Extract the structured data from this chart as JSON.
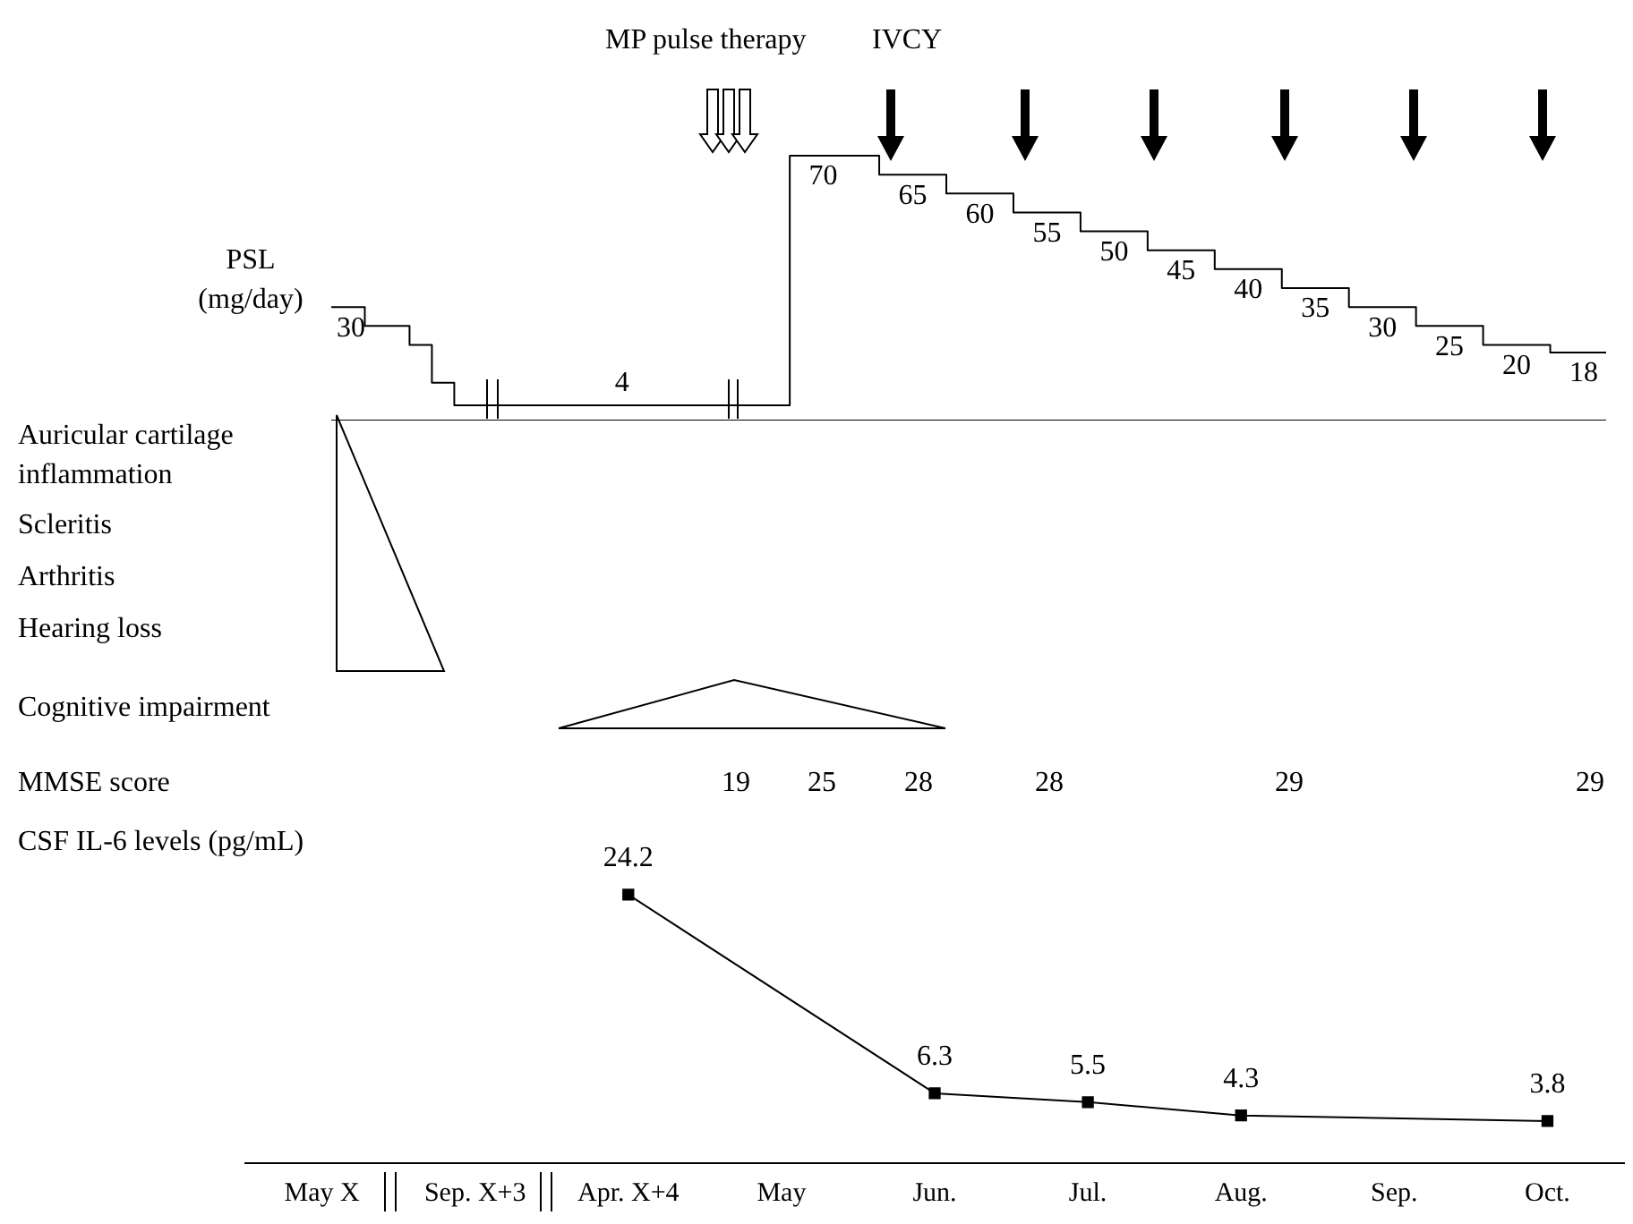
{
  "chart_data": [
    {
      "type": "step",
      "ylabel": "PSL (mg/day)",
      "color": "#000000",
      "grid": false,
      "legend": false,
      "tick_labels": false,
      "categories": [
        null,
        null,
        null,
        null,
        null,
        null,
        null,
        null,
        null,
        null,
        null,
        null,
        null,
        null,
        null,
        null,
        null,
        null,
        null,
        null,
        null,
        null,
        null,
        null,
        null,
        null,
        null,
        null,
        null,
        null,
        null,
        null,
        null,
        null,
        null,
        null,
        null,
        null,
        null,
        null,
        null,
        null,
        null,
        null,
        null,
        null,
        null,
        null,
        null,
        null,
        null,
        null,
        null,
        null,
        null,
        null,
        null,
        null
      ],
      "values": [
        30,
        30,
        25,
        25,
        20,
        10,
        4,
        4,
        4,
        4,
        4,
        4,
        4,
        4,
        4,
        4,
        4,
        4,
        4,
        4,
        4,
        70,
        70,
        70,
        70,
        65,
        65,
        65,
        60,
        60,
        60,
        55,
        55,
        55,
        50,
        50,
        50,
        45,
        45,
        45,
        40,
        40,
        40,
        35,
        35,
        35,
        30,
        30,
        30,
        25,
        25,
        25,
        20,
        20,
        20,
        18,
        18,
        18
      ],
      "value_labels": [
        "30",
        null,
        null,
        null,
        null,
        null,
        null,
        null,
        null,
        null,
        null,
        null,
        null,
        "4",
        null,
        null,
        null,
        null,
        null,
        null,
        null,
        null,
        "70",
        null,
        null,
        null,
        "65",
        null,
        null,
        "60",
        null,
        null,
        "55",
        null,
        null,
        "50",
        null,
        null,
        "45",
        null,
        null,
        "40",
        null,
        null,
        "35",
        null,
        null,
        "30",
        null,
        null,
        "25",
        null,
        null,
        "20",
        null,
        null,
        "18",
        null
      ],
      "annotations": [
        "MP pulse therapy",
        "IVCY",
        "Auricular cartilage inflammation",
        "Scleritis",
        "Arthritis",
        "Hearing loss",
        "Cognitive impairment",
        "MMSE score",
        "19",
        "25",
        "28",
        "28",
        "29",
        "29"
      ]
    },
    {
      "type": "line",
      "ylabel": "CSF IL-6 levels (pg/mL)",
      "color": "#000000",
      "marker": "square",
      "data_labels": true,
      "grid": false,
      "legend": false,
      "tick_labels": "x",
      "categories": [
        "May X",
        "Sep. X+3",
        "Apr. X+4",
        "May",
        "Jun.",
        "Jul.",
        "Aug.",
        "Sep.",
        "Oct."
      ],
      "values": [
        null,
        null,
        24.2,
        null,
        6.3,
        5.5,
        4.3,
        null,
        3.8
      ]
    }
  ]
}
